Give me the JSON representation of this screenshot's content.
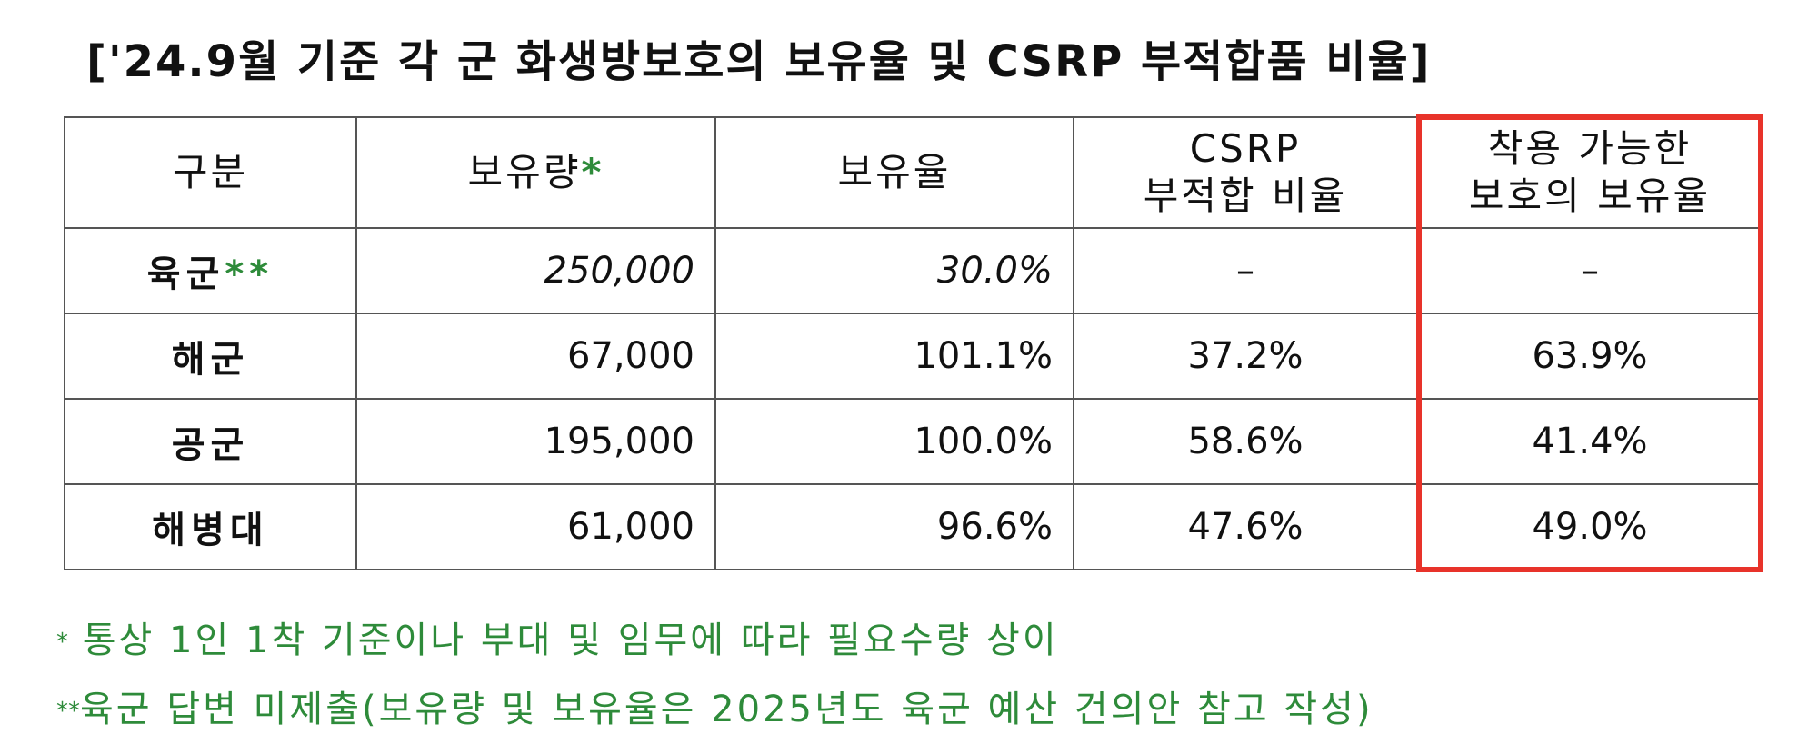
{
  "title": "['24.9월 기준 각 군 화생방보호의 보유율 및 CSRP 부적합품 비율]",
  "table": {
    "headers": {
      "category": "구분",
      "holdings": "보유량",
      "holdings_mark": "*",
      "rate": "보유율",
      "csrp_line1": "CSRP",
      "csrp_line2": "부적합 비율",
      "usable_line1": "착용 가능한",
      "usable_line2": "보호의 보유율"
    },
    "rows": [
      {
        "name": "육군",
        "mark": "**",
        "holdings": "250,000",
        "rate": "30.0%",
        "csrp": "–",
        "usable": "–"
      },
      {
        "name": "해군",
        "mark": "",
        "holdings": "67,000",
        "rate": "101.1%",
        "csrp": "37.2%",
        "usable": "63.9%"
      },
      {
        "name": "공군",
        "mark": "",
        "holdings": "195,000",
        "rate": "100.0%",
        "csrp": "58.6%",
        "usable": "41.4%"
      },
      {
        "name": "해병대",
        "mark": "",
        "holdings": "61,000",
        "rate": "96.6%",
        "csrp": "47.6%",
        "usable": "49.0%"
      }
    ]
  },
  "notes": [
    {
      "mark": "*",
      "text": " 통상 1인 1착 기준이나 부대 및 임무에 따라 필요수량 상이"
    },
    {
      "mark": "**",
      "text": "육군 답변 미제출(보유량 및 보유율은 2025년도 육군 예산 건의안 참고 작성)"
    }
  ],
  "colors": {
    "note_text": "#2e8b3a",
    "highlight_border": "#e8332a",
    "grid": "#555555"
  }
}
